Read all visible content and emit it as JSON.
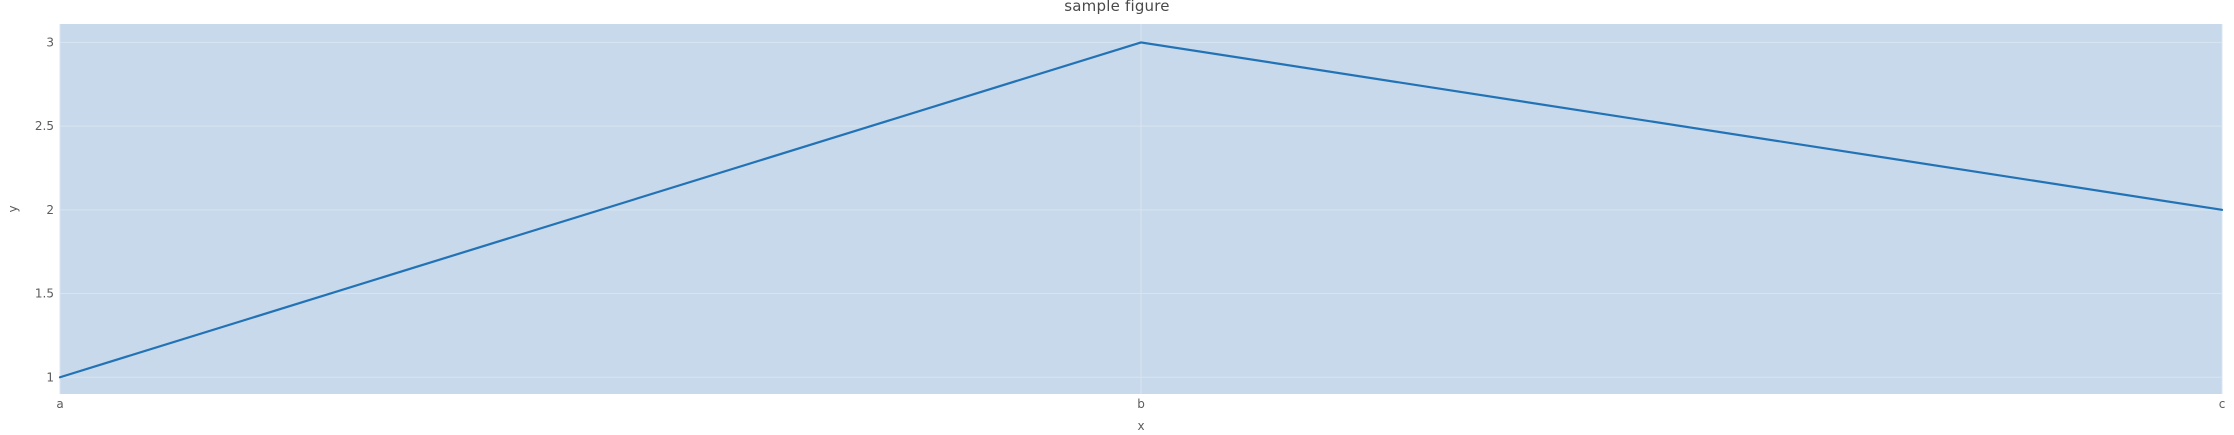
{
  "chart_data": {
    "type": "line",
    "title": "sample figure",
    "xlabel": "x",
    "ylabel": "y",
    "categories": [
      "a",
      "b",
      "c"
    ],
    "series": [
      {
        "name": "y",
        "values": [
          1,
          3,
          2
        ]
      }
    ],
    "yticks": [
      1,
      1.5,
      2,
      2.5,
      3
    ],
    "ytick_labels": [
      "1",
      "1.5",
      "2",
      "2.5",
      "3"
    ],
    "ylim": [
      0.9,
      3.11
    ],
    "grid": true,
    "legend_visible": false,
    "colors": {
      "line": "#2272b6",
      "plot_background": "#c7d9ea",
      "grid_line": "#d9e4f0",
      "figure_background": "#ffffff",
      "title_text": "#4a4a4a",
      "tick_text": "#5c5c5c"
    }
  }
}
